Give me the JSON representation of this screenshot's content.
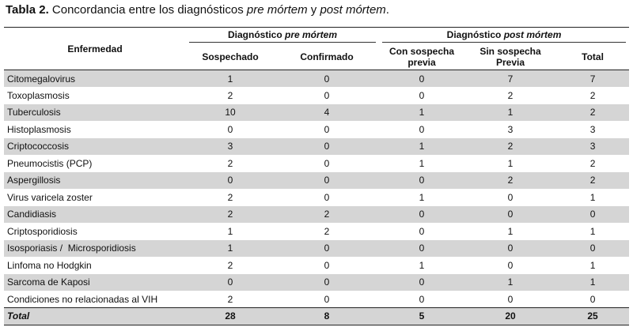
{
  "caption": {
    "label": "Tabla 2.",
    "text_before": " Concordancia entre los diagnósticos ",
    "italic_1": "pre mórtem",
    "text_mid": " y ",
    "italic_2": "post mórtem",
    "text_after": "."
  },
  "headers": {
    "disease": "Enfermedad",
    "group_pre_prefix": "Diagnóstico ",
    "group_pre_italic": "pre mórtem",
    "group_post_prefix": "Diagnóstico ",
    "group_post_italic": "post mórtem",
    "suspected": "Sospechado",
    "confirmed": "Confirmado",
    "with_suspicion_l1": "Con sospecha",
    "with_suspicion_l2": "previa",
    "without_suspicion_l1": "Sin sospecha",
    "without_suspicion_l2": "Previa",
    "total": "Total"
  },
  "rows": [
    {
      "name": "Citomegalovirus",
      "suspected": "1",
      "confirmed": "0",
      "with_prev": "0",
      "without_prev": "7",
      "total": "7"
    },
    {
      "name": "Toxoplasmosis",
      "suspected": "2",
      "confirmed": "0",
      "with_prev": "0",
      "without_prev": "2",
      "total": "2"
    },
    {
      "name": "Tuberculosis",
      "suspected": "10",
      "confirmed": "4",
      "with_prev": "1",
      "without_prev": "1",
      "total": "2"
    },
    {
      "name": "Histoplasmosis",
      "suspected": "0",
      "confirmed": "0",
      "with_prev": "0",
      "without_prev": "3",
      "total": "3"
    },
    {
      "name": "Criptococcosis",
      "suspected": "3",
      "confirmed": "0",
      "with_prev": "1",
      "without_prev": "2",
      "total": "3"
    },
    {
      "name": "Pneumocistis (PCP)",
      "suspected": "2",
      "confirmed": "0",
      "with_prev": "1",
      "without_prev": "1",
      "total": "2"
    },
    {
      "name": "Aspergillosis",
      "suspected": "0",
      "confirmed": "0",
      "with_prev": "0",
      "without_prev": "2",
      "total": "2"
    },
    {
      "name": "Virus varicela zoster",
      "suspected": "2",
      "confirmed": "0",
      "with_prev": "1",
      "without_prev": "0",
      "total": "1"
    },
    {
      "name": "Candidiasis",
      "suspected": "2",
      "confirmed": "2",
      "with_prev": "0",
      "without_prev": "0",
      "total": "0"
    },
    {
      "name": "Criptosporidiosis",
      "suspected": "1",
      "confirmed": "2",
      "with_prev": "0",
      "without_prev": "1",
      "total": "1"
    },
    {
      "name": "Isosporiasis /  Microsporidiosis",
      "suspected": "1",
      "confirmed": "0",
      "with_prev": "0",
      "without_prev": "0",
      "total": "0"
    },
    {
      "name": "Linfoma no Hodgkin",
      "suspected": "2",
      "confirmed": "0",
      "with_prev": "1",
      "without_prev": "0",
      "total": "1"
    },
    {
      "name": "Sarcoma de Kaposi",
      "suspected": "0",
      "confirmed": "0",
      "with_prev": "0",
      "without_prev": "1",
      "total": "1"
    },
    {
      "name": "Condiciones no relacionadas al VIH",
      "suspected": "2",
      "confirmed": "0",
      "with_prev": "0",
      "without_prev": "0",
      "total": "0"
    }
  ],
  "total_row": {
    "name": "Total",
    "suspected": "28",
    "confirmed": "8",
    "with_prev": "5",
    "without_prev": "20",
    "total": "25"
  },
  "colors": {
    "shaded_row": "#d5d5d5",
    "rule": "#222222"
  }
}
